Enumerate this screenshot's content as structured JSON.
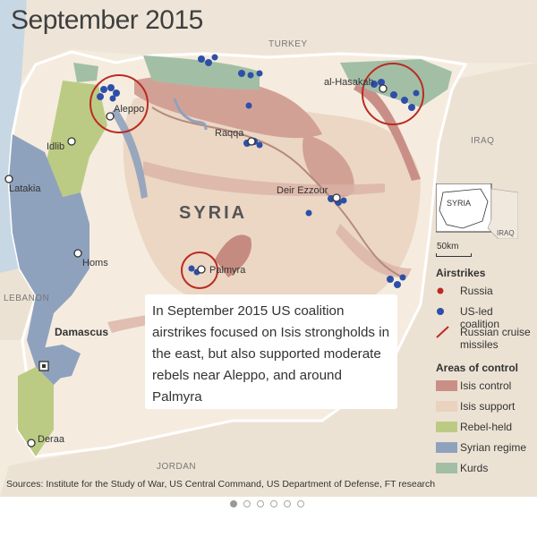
{
  "title": "September 2015",
  "caption": "In September 2015 US coalition airstrikes focused on Isis strongholds in the east, but also supported moderate rebels near Aleppo, and around Palmyra",
  "source": "Sources: Institute for the Study of War, US Central Command, US Department of Defense, FT research",
  "country_label": "SYRIA",
  "neighbours": {
    "turkey": "TURKEY",
    "iraq": "IRAQ",
    "lebanon": "LEBANON",
    "jordan": "JORDAN"
  },
  "cities": {
    "aleppo": "Aleppo",
    "idlib": "Idlib",
    "latakia": "Latakia",
    "homs": "Homs",
    "damascus": "Damascus",
    "deraa": "Deraa",
    "palmyra": "Palmyra",
    "raqqa": "Raqqa",
    "deir_ezzour": "Deir Ezzour",
    "al_hasakah": "al-Hasakah"
  },
  "inset": {
    "country": "SYRIA",
    "neighbour": "IRAQ"
  },
  "scale": "50km",
  "legend": {
    "airstrikes_title": "Airstrikes",
    "russia": "Russia",
    "us_led": "US-led coalition",
    "cruise": "Russian cruise missiles",
    "areas_title": "Areas of control",
    "isis_control": "Isis control",
    "isis_support": "Isis support",
    "rebel": "Rebel-held",
    "regime": "Syrian regime",
    "kurds": "Kurds"
  },
  "colors": {
    "land": "#f4ebdf",
    "isis_control": "#c98f86",
    "isis_support": "#e9d2be",
    "rebel": "#bccb84",
    "regime": "#8fa2bd",
    "kurds": "#a2bfa6",
    "sea": "#c8d7e4",
    "us_led": "#2e4fa8",
    "russia": "#bb2b22"
  },
  "pagination": {
    "count": 6,
    "active": 0
  }
}
